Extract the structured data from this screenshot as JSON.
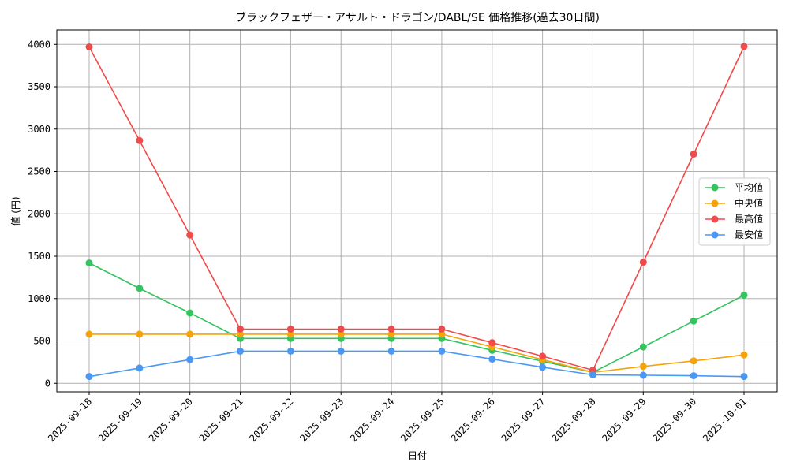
{
  "chart_data": {
    "type": "line",
    "title": "ブラックフェザー・アサルト・ドラゴン/DABL/SE 価格推移(過去30日間)",
    "xlabel": "日付",
    "ylabel": "値 (円)",
    "ylim": [
      -100,
      4170
    ],
    "yticks": [
      0,
      500,
      1000,
      1500,
      2000,
      2500,
      3000,
      3500,
      4000
    ],
    "grid": true,
    "legend_position": "right",
    "categories": [
      "2025-09-18",
      "2025-09-19",
      "2025-09-20",
      "2025-09-21",
      "2025-09-22",
      "2025-09-23",
      "2025-09-24",
      "2025-09-25",
      "2025-09-26",
      "2025-09-27",
      "2025-09-28",
      "2025-09-29",
      "2025-09-30",
      "2025-10-01"
    ],
    "series": [
      {
        "name": "平均値",
        "color": "#33c45f",
        "values": [
          1420,
          1120,
          830,
          530,
          530,
          530,
          530,
          530,
          390,
          260,
          130,
          430,
          735,
          1040
        ]
      },
      {
        "name": "中央値",
        "color": "#f5a30a",
        "values": [
          580,
          580,
          580,
          580,
          580,
          580,
          580,
          580,
          430,
          280,
          130,
          200,
          265,
          335
        ]
      },
      {
        "name": "最高値",
        "color": "#f04a4a",
        "values": [
          3970,
          2865,
          1750,
          640,
          640,
          640,
          640,
          640,
          480,
          320,
          155,
          1430,
          2705,
          3975
        ]
      },
      {
        "name": "最安値",
        "color": "#4a98f5",
        "values": [
          80,
          180,
          280,
          380,
          380,
          380,
          380,
          380,
          285,
          190,
          100,
          95,
          90,
          80
        ]
      }
    ]
  }
}
